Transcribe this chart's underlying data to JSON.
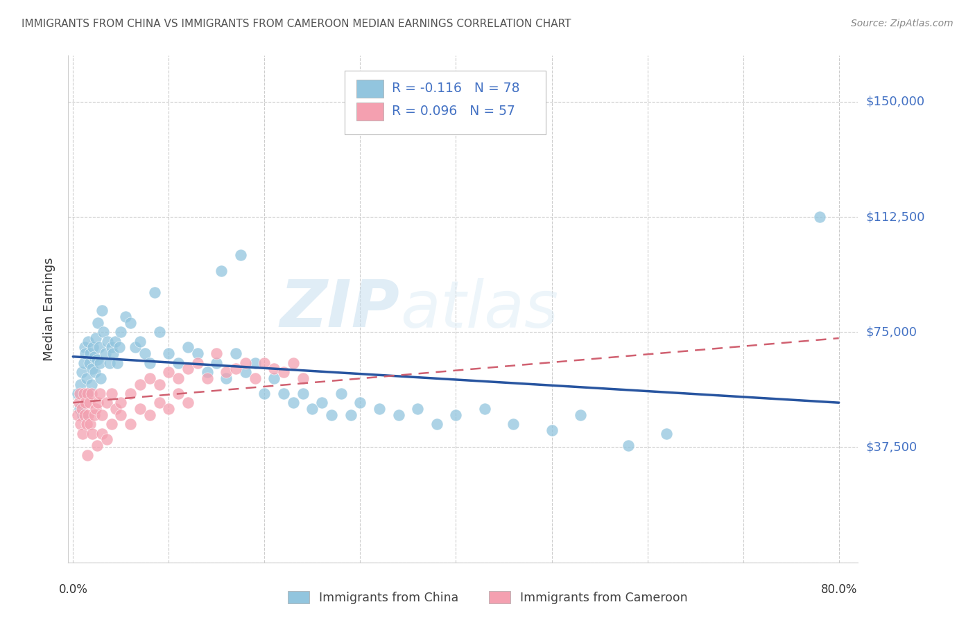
{
  "title": "IMMIGRANTS FROM CHINA VS IMMIGRANTS FROM CAMEROON MEDIAN EARNINGS CORRELATION CHART",
  "source": "Source: ZipAtlas.com",
  "ylabel": "Median Earnings",
  "xlim": [
    -0.005,
    0.82
  ],
  "ylim": [
    0,
    165000
  ],
  "yticks": [
    0,
    37500,
    75000,
    112500,
    150000
  ],
  "ytick_labels": [
    "",
    "$37,500",
    "$75,000",
    "$112,500",
    "$150,000"
  ],
  "xticks": [
    0.0,
    0.1,
    0.2,
    0.3,
    0.4,
    0.5,
    0.6,
    0.7,
    0.8
  ],
  "china_color": "#92C5DE",
  "cameroon_color": "#F4A0B0",
  "china_line_color": "#2855A0",
  "cameroon_line_color": "#D06070",
  "legend_china_color": "#92C5DE",
  "legend_cameroon_color": "#F4A0B0",
  "watermark": "ZIPatlas",
  "legend_text_color": "#4472C4",
  "china_x": [
    0.005,
    0.007,
    0.008,
    0.009,
    0.01,
    0.011,
    0.012,
    0.013,
    0.014,
    0.015,
    0.016,
    0.017,
    0.018,
    0.019,
    0.02,
    0.021,
    0.022,
    0.023,
    0.024,
    0.025,
    0.026,
    0.027,
    0.028,
    0.029,
    0.03,
    0.032,
    0.034,
    0.036,
    0.038,
    0.04,
    0.042,
    0.044,
    0.046,
    0.048,
    0.05,
    0.055,
    0.06,
    0.065,
    0.07,
    0.075,
    0.08,
    0.09,
    0.1,
    0.11,
    0.12,
    0.13,
    0.14,
    0.15,
    0.16,
    0.17,
    0.18,
    0.19,
    0.2,
    0.21,
    0.22,
    0.23,
    0.24,
    0.25,
    0.26,
    0.27,
    0.28,
    0.29,
    0.3,
    0.32,
    0.34,
    0.36,
    0.38,
    0.4,
    0.43,
    0.46,
    0.5,
    0.53,
    0.58,
    0.62,
    0.78,
    0.085,
    0.155,
    0.175
  ],
  "china_y": [
    55000,
    50000,
    58000,
    62000,
    48000,
    65000,
    70000,
    68000,
    60000,
    55000,
    72000,
    65000,
    68000,
    58000,
    63000,
    70000,
    67000,
    62000,
    73000,
    66000,
    78000,
    70000,
    65000,
    60000,
    82000,
    75000,
    68000,
    72000,
    65000,
    70000,
    68000,
    72000,
    65000,
    70000,
    75000,
    80000,
    78000,
    70000,
    72000,
    68000,
    65000,
    75000,
    68000,
    65000,
    70000,
    68000,
    62000,
    65000,
    60000,
    68000,
    62000,
    65000,
    55000,
    60000,
    55000,
    52000,
    55000,
    50000,
    52000,
    48000,
    55000,
    48000,
    52000,
    50000,
    48000,
    50000,
    45000,
    48000,
    50000,
    45000,
    43000,
    48000,
    38000,
    42000,
    112500,
    88000,
    95000,
    100000
  ],
  "cameroon_x": [
    0.005,
    0.006,
    0.007,
    0.008,
    0.009,
    0.01,
    0.011,
    0.012,
    0.013,
    0.014,
    0.015,
    0.016,
    0.017,
    0.018,
    0.019,
    0.02,
    0.022,
    0.024,
    0.026,
    0.028,
    0.03,
    0.035,
    0.04,
    0.045,
    0.05,
    0.06,
    0.07,
    0.08,
    0.09,
    0.1,
    0.11,
    0.12,
    0.13,
    0.14,
    0.15,
    0.16,
    0.17,
    0.18,
    0.19,
    0.2,
    0.21,
    0.22,
    0.23,
    0.24,
    0.03,
    0.04,
    0.05,
    0.06,
    0.07,
    0.08,
    0.09,
    0.1,
    0.11,
    0.12,
    0.025,
    0.015,
    0.035
  ],
  "cameroon_y": [
    48000,
    52000,
    55000,
    45000,
    50000,
    42000,
    55000,
    48000,
    52000,
    45000,
    55000,
    48000,
    52000,
    45000,
    55000,
    42000,
    48000,
    50000,
    52000,
    55000,
    48000,
    52000,
    55000,
    50000,
    52000,
    55000,
    58000,
    60000,
    58000,
    62000,
    60000,
    63000,
    65000,
    60000,
    68000,
    62000,
    63000,
    65000,
    60000,
    65000,
    63000,
    62000,
    65000,
    60000,
    42000,
    45000,
    48000,
    45000,
    50000,
    48000,
    52000,
    50000,
    55000,
    52000,
    38000,
    35000,
    40000
  ]
}
